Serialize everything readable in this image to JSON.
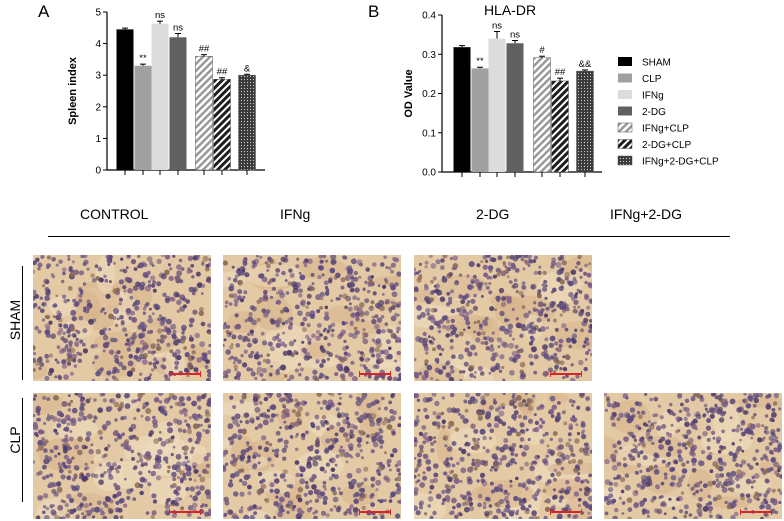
{
  "figure": {
    "panel_a": "A",
    "panel_b": "B",
    "columns": [
      "CONTROL",
      "IFNg",
      "2-DG",
      "IFNg+2-DG"
    ],
    "rows": [
      "SHAM",
      "CLP"
    ]
  },
  "legend": {
    "items": [
      {
        "label": "SHAM",
        "color": "#000000",
        "pattern": "solid"
      },
      {
        "label": "CLP",
        "color": "#a0a0a0",
        "pattern": "solid"
      },
      {
        "label": "IFNg",
        "color": "#dcdcdc",
        "pattern": "solid"
      },
      {
        "label": "2-DG",
        "color": "#606060",
        "pattern": "solid"
      },
      {
        "label": "IFNg+CLP",
        "color": "#bdbdbd",
        "pattern": "hatch-light"
      },
      {
        "label": "2-DG+CLP",
        "color": "#2b2b2b",
        "pattern": "hatch-dark"
      },
      {
        "label": "IFNg+2-DG+CLP",
        "color": "#4a4a4a",
        "pattern": "dots"
      }
    ]
  },
  "chart_data": [
    {
      "type": "bar",
      "title": "",
      "ylabel": "Spleen index",
      "xlabel": "",
      "ylim": [
        0,
        5
      ],
      "yticks": [
        "0",
        "1",
        "2",
        "3",
        "4",
        "5"
      ],
      "categories": [
        "SHAM",
        "CLP",
        "IFNg",
        "2-DG",
        "IFNg+CLP",
        "2-DG+CLP",
        "IFNg+2-DG+CLP"
      ],
      "values": [
        4.45,
        3.3,
        4.63,
        4.2,
        3.6,
        2.87,
        3.0
      ],
      "errors": [
        0.04,
        0.05,
        0.08,
        0.12,
        0.05,
        0.05,
        0.03
      ],
      "annotations": [
        "",
        "**",
        "ns",
        "ns",
        "##",
        "##",
        "&"
      ]
    },
    {
      "type": "bar",
      "title": "HLA-DR",
      "ylabel": "OD Value",
      "xlabel": "",
      "ylim": [
        0,
        0.4
      ],
      "yticks": [
        "0.0",
        "0.1",
        "0.2",
        "0.3",
        "0.4"
      ],
      "categories": [
        "SHAM",
        "CLP",
        "IFNg",
        "2-DG",
        "IFNg+CLP",
        "2-DG+CLP",
        "IFNg+2-DG+CLP"
      ],
      "values": [
        0.318,
        0.264,
        0.34,
        0.328,
        0.291,
        0.232,
        0.257
      ],
      "errors": [
        0.004,
        0.003,
        0.018,
        0.007,
        0.004,
        0.007,
        0.003
      ],
      "annotations": [
        "",
        "**",
        "ns",
        "ns",
        "#",
        "##",
        "&&"
      ]
    }
  ]
}
